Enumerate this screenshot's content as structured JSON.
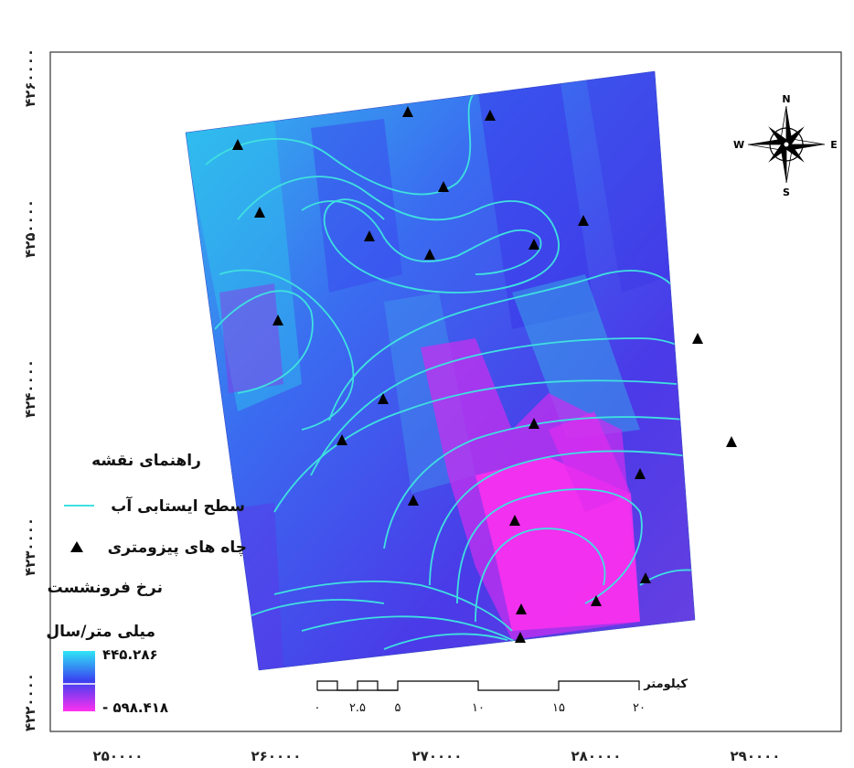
{
  "map": {
    "y_axis_labels": [
      "۴۲۶۰۰۰۰",
      "۴۲۵۰۰۰۰",
      "۴۲۴۰۰۰۰",
      "۴۲۳۰۰۰۰",
      "۴۲۲۰۰۰۰"
    ],
    "x_axis_labels": [
      "۲۵۰۰۰۰",
      "۲۶۰۰۰۰",
      "۲۷۰۰۰۰",
      "۲۸۰۰۰۰",
      "۲۹۰۰۰۰"
    ],
    "colors": {
      "high": "#2fd6f0",
      "mid": "#3a57ef",
      "low": "#ff30ef",
      "contour": "#3fe0e0",
      "well": "#000000"
    }
  },
  "legend": {
    "title": "راهنمای نقشه",
    "contour_label": "سطح ایستابی آب",
    "wells_label": "چاه های پیزومتری",
    "rate_title": "نرخ فرونشست",
    "unit": "میلی متر/سال",
    "max_value": "۴۴۵.۲۸۶",
    "min_value": "- ۵۹۸.۴۱۸"
  },
  "scale_bar": {
    "unit": "کیلومتر",
    "ticks": [
      "۰",
      "۲.۵",
      "۵",
      "۱۰",
      "۱۵",
      "۲۰"
    ]
  },
  "compass": {
    "north": "N",
    "south": "S",
    "east": "E",
    "west": "W"
  }
}
